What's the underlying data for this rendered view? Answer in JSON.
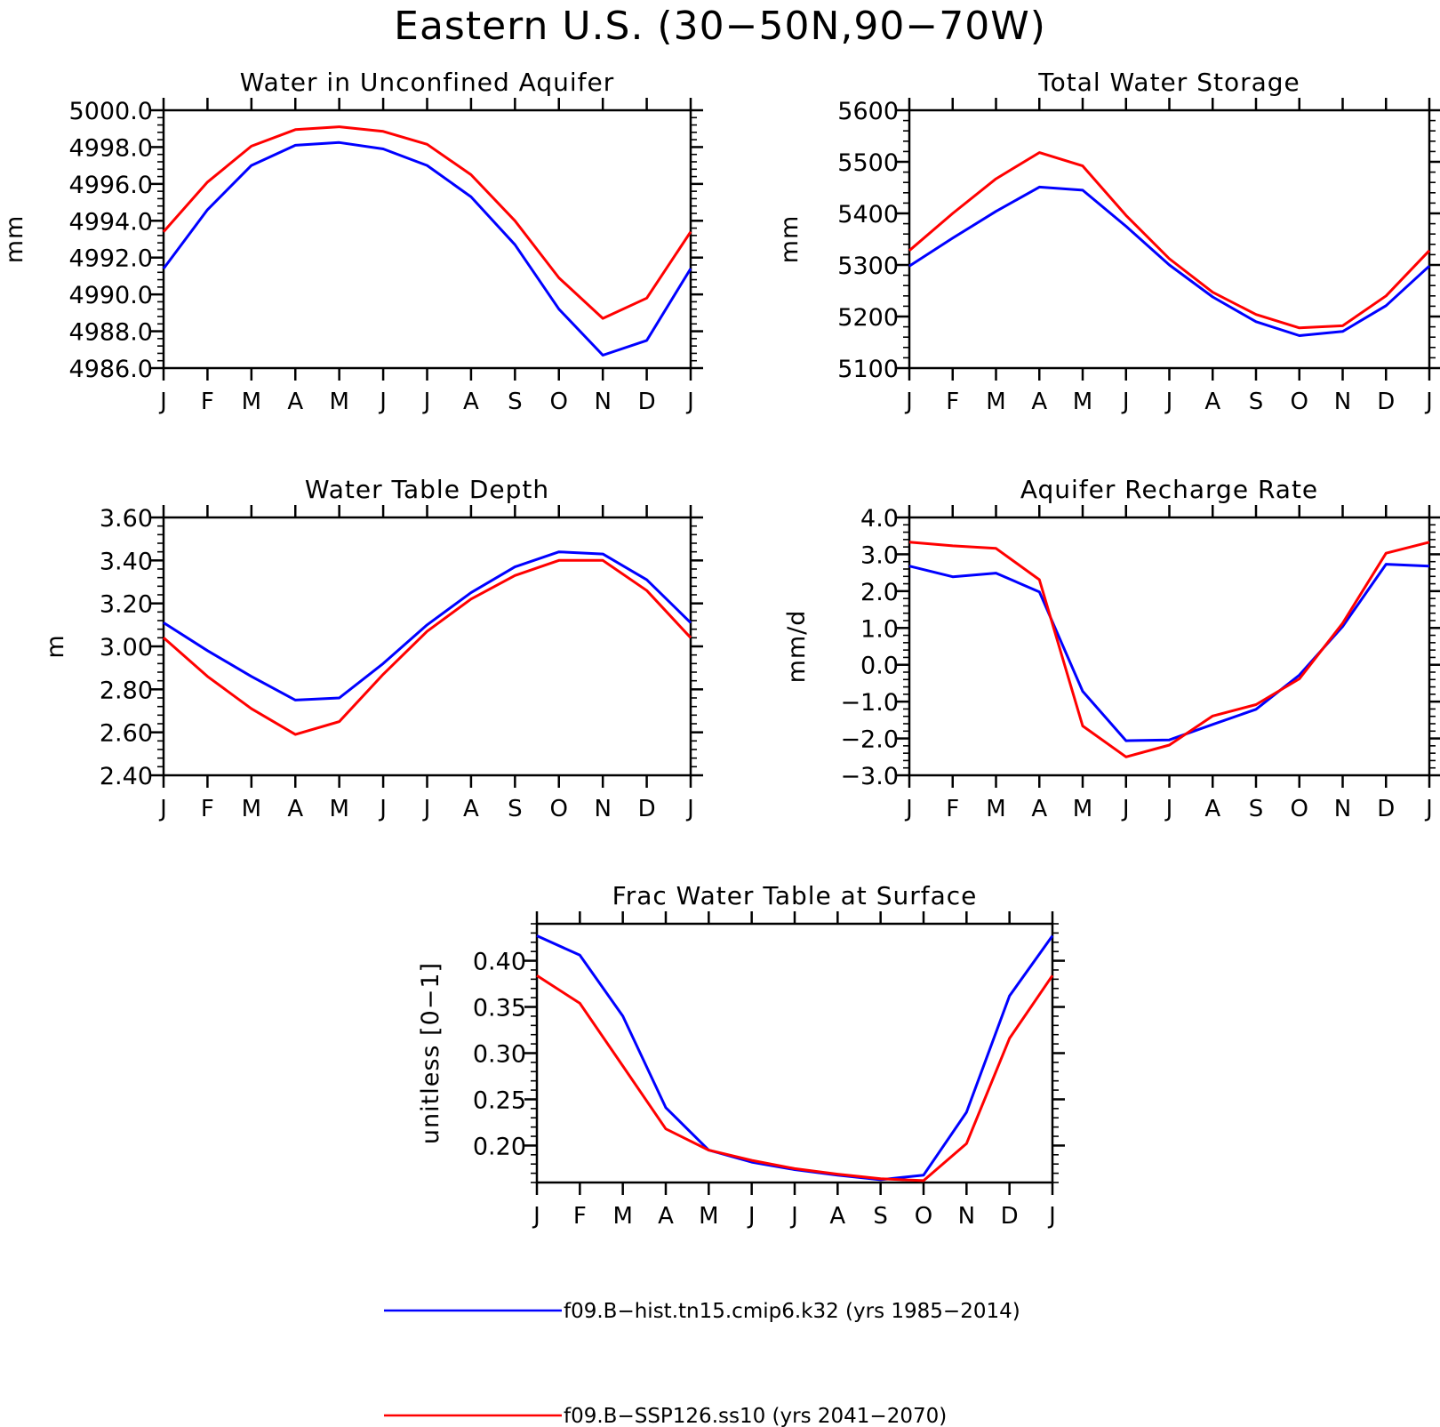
{
  "figure": {
    "title": "Eastern U.S. (30−50N,90−70W)"
  },
  "legend": {
    "items": [
      {
        "label": "f09.B−hist.tn15.cmip6.k32 (yrs 1985−2014)",
        "color": "#0000ff"
      },
      {
        "label": "f09.B−SSP126.ss10 (yrs 2041−2070)",
        "color": "#ff0000"
      }
    ]
  },
  "chart_data": [
    {
      "type": "line",
      "title": "Water in Unconfined Aquifer",
      "ylabel": "mm",
      "xlabel": "",
      "categories": [
        "J",
        "F",
        "M",
        "A",
        "M",
        "J",
        "J",
        "A",
        "S",
        "O",
        "N",
        "D",
        "J"
      ],
      "ylim": [
        4986.0,
        5000.0
      ],
      "yticks": [
        4986.0,
        4988.0,
        4990.0,
        4992.0,
        4994.0,
        4996.0,
        4998.0,
        5000.0
      ],
      "ytick_labels": [
        "4986.0",
        "4988.0",
        "4990.0",
        "4992.0",
        "4994.0",
        "4996.0",
        "4998.0",
        "5000.0"
      ],
      "series": [
        {
          "color": "#0000ff",
          "values": [
            4991.4,
            4994.6,
            4997.0,
            4998.1,
            4998.25,
            4997.9,
            4997.0,
            4995.3,
            4992.7,
            4989.2,
            4986.7,
            4987.5,
            4991.4
          ]
        },
        {
          "color": "#ff0000",
          "values": [
            4993.4,
            4996.1,
            4998.05,
            4998.95,
            4999.1,
            4998.85,
            4998.15,
            4996.5,
            4994.0,
            4990.9,
            4988.7,
            4989.8,
            4993.4
          ]
        }
      ]
    },
    {
      "type": "line",
      "title": "Total Water Storage",
      "ylabel": "mm",
      "xlabel": "",
      "categories": [
        "J",
        "F",
        "M",
        "A",
        "M",
        "J",
        "J",
        "A",
        "S",
        "O",
        "N",
        "D",
        "J"
      ],
      "ylim": [
        5100,
        5600
      ],
      "yticks": [
        5100,
        5200,
        5300,
        5400,
        5500,
        5600
      ],
      "ytick_labels": [
        "5100",
        "5200",
        "5300",
        "5400",
        "5500",
        "5600"
      ],
      "series": [
        {
          "color": "#0000ff",
          "values": [
            5298,
            5352,
            5404,
            5451,
            5445,
            5375,
            5300,
            5238,
            5190,
            5163,
            5171,
            5221,
            5298
          ]
        },
        {
          "color": "#ff0000",
          "values": [
            5328,
            5400,
            5467,
            5518,
            5492,
            5396,
            5312,
            5247,
            5204,
            5178,
            5182,
            5240,
            5328
          ]
        }
      ]
    },
    {
      "type": "line",
      "title": "Water Table Depth",
      "ylabel": "m",
      "xlabel": "",
      "categories": [
        "J",
        "F",
        "M",
        "A",
        "M",
        "J",
        "J",
        "A",
        "S",
        "O",
        "N",
        "D",
        "J"
      ],
      "ylim": [
        2.4,
        3.6
      ],
      "yticks": [
        2.4,
        2.6,
        2.8,
        3.0,
        3.2,
        3.4,
        3.6
      ],
      "ytick_labels": [
        "2.40",
        "2.60",
        "2.80",
        "3.00",
        "3.20",
        "3.40",
        "3.60"
      ],
      "series": [
        {
          "color": "#0000ff",
          "values": [
            3.11,
            2.98,
            2.86,
            2.75,
            2.76,
            2.92,
            3.1,
            3.25,
            3.37,
            3.44,
            3.43,
            3.31,
            3.11
          ]
        },
        {
          "color": "#ff0000",
          "values": [
            3.04,
            2.86,
            2.71,
            2.59,
            2.65,
            2.87,
            3.07,
            3.22,
            3.33,
            3.4,
            3.4,
            3.26,
            3.04
          ]
        }
      ]
    },
    {
      "type": "line",
      "title": "Aquifer Recharge Rate",
      "ylabel": "mm/d",
      "xlabel": "",
      "categories": [
        "J",
        "F",
        "M",
        "A",
        "M",
        "J",
        "J",
        "A",
        "S",
        "O",
        "N",
        "D",
        "J"
      ],
      "ylim": [
        -3.0,
        4.0
      ],
      "yticks": [
        -3.0,
        -2.0,
        -1.0,
        0.0,
        1.0,
        2.0,
        3.0,
        4.0
      ],
      "ytick_labels": [
        "−3.0",
        "−2.0",
        "−1.0",
        "0.0",
        "1.0",
        "2.0",
        "3.0",
        "4.0"
      ],
      "series": [
        {
          "color": "#0000ff",
          "values": [
            2.68,
            2.39,
            2.49,
            1.98,
            -0.72,
            -2.06,
            -2.04,
            -1.62,
            -1.21,
            -0.28,
            1.04,
            2.73,
            2.68
          ]
        },
        {
          "color": "#ff0000",
          "values": [
            3.33,
            3.23,
            3.16,
            2.31,
            -1.66,
            -2.5,
            -2.18,
            -1.39,
            -1.08,
            -0.38,
            1.13,
            3.03,
            3.33
          ]
        }
      ]
    },
    {
      "type": "line",
      "title": "Frac Water Table at Surface",
      "ylabel": "unitless [0−1]",
      "xlabel": "",
      "categories": [
        "J",
        "F",
        "M",
        "A",
        "M",
        "J",
        "J",
        "A",
        "S",
        "O",
        "N",
        "D",
        "J"
      ],
      "ylim": [
        0.16,
        0.44
      ],
      "yticks": [
        0.2,
        0.25,
        0.3,
        0.35,
        0.4
      ],
      "ytick_labels": [
        "0.20",
        "0.25",
        "0.30",
        "0.35",
        "0.40"
      ],
      "series": [
        {
          "color": "#0000ff",
          "values": [
            0.427,
            0.406,
            0.34,
            0.241,
            0.195,
            0.182,
            0.174,
            0.168,
            0.163,
            0.168,
            0.236,
            0.362,
            0.427
          ]
        },
        {
          "color": "#ff0000",
          "values": [
            0.384,
            0.354,
            0.286,
            0.218,
            0.195,
            0.184,
            0.175,
            0.169,
            0.164,
            0.162,
            0.202,
            0.316,
            0.384
          ]
        }
      ]
    }
  ]
}
